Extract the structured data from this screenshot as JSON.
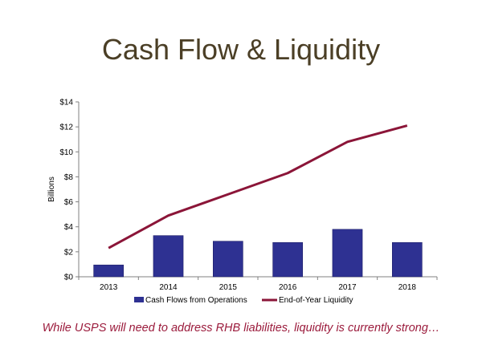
{
  "slide": {
    "title": "Cash Flow & Liquidity",
    "caption": "While USPS will need to address RHB liabilities, liquidity is currently strong…"
  },
  "chart_data": {
    "type": "bar",
    "categories": [
      "2013",
      "2014",
      "2015",
      "2016",
      "2017",
      "2018"
    ],
    "ylabel": "Billions",
    "ylim": [
      0,
      14
    ],
    "yticks": [
      0,
      2,
      4,
      6,
      8,
      10,
      12,
      14
    ],
    "ytick_labels": [
      "$0",
      "$2",
      "$4",
      "$6",
      "$8",
      "$10",
      "$12",
      "$14"
    ],
    "grid": false,
    "legend_position": "bottom",
    "series": [
      {
        "name": "Cash Flows from Operations",
        "type": "bar",
        "color": "#2e3192",
        "values": [
          0.95,
          3.3,
          2.85,
          2.75,
          3.8,
          2.75
        ]
      },
      {
        "name": "End-of-Year Liquidity",
        "type": "line",
        "color": "#8b1538",
        "values": [
          2.3,
          4.9,
          6.6,
          8.3,
          10.8,
          12.1
        ]
      }
    ]
  }
}
